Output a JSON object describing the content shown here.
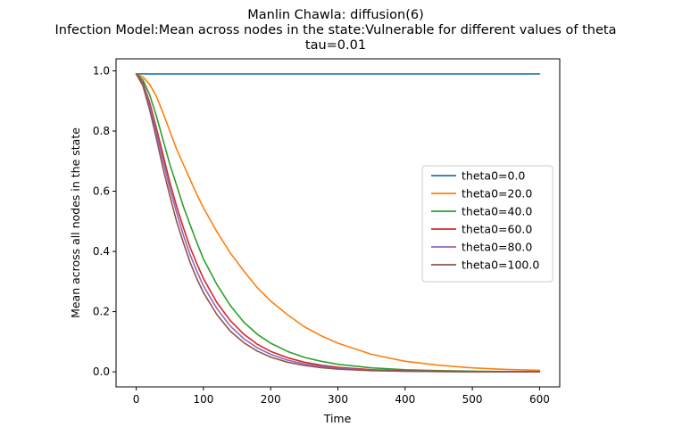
{
  "chart_data": {
    "type": "line",
    "title": "Manlin Chawla: diffusion(6)",
    "subtitle": "Infection Model:Mean across nodes in the state:Vulnerable for different values of theta",
    "subtitle2": "tau=0.01",
    "xlabel": "Time",
    "ylabel": "Mean across all nodes in the state",
    "xlim": [
      -30,
      630
    ],
    "ylim": [
      -0.05,
      1.04
    ],
    "xticks": [
      0,
      100,
      200,
      300,
      400,
      500,
      600
    ],
    "yticks": [
      0.0,
      0.2,
      0.4,
      0.6,
      0.8,
      1.0
    ],
    "xtick_labels": [
      "0",
      "100",
      "200",
      "300",
      "400",
      "500",
      "600"
    ],
    "ytick_labels": [
      "0.0",
      "0.2",
      "0.4",
      "0.6",
      "0.8",
      "1.0"
    ],
    "grid": false,
    "legend_position": "center-right",
    "x": [
      0,
      10,
      20,
      30,
      40,
      50,
      60,
      70,
      80,
      90,
      100,
      120,
      140,
      160,
      180,
      200,
      225,
      250,
      275,
      300,
      350,
      400,
      450,
      500,
      550,
      600
    ],
    "series": [
      {
        "name": "theta0=0.0",
        "color": "#1f77b4",
        "values": [
          0.99,
          0.99,
          0.99,
          0.99,
          0.99,
          0.99,
          0.99,
          0.99,
          0.99,
          0.99,
          0.99,
          0.99,
          0.99,
          0.99,
          0.99,
          0.99,
          0.99,
          0.99,
          0.99,
          0.99,
          0.99,
          0.99,
          0.99,
          0.99,
          0.99,
          0.99
        ]
      },
      {
        "name": "theta0=20.0",
        "color": "#ff7f0e",
        "values": [
          0.99,
          0.98,
          0.955,
          0.915,
          0.86,
          0.8,
          0.74,
          0.69,
          0.64,
          0.59,
          0.545,
          0.465,
          0.395,
          0.335,
          0.28,
          0.235,
          0.19,
          0.15,
          0.12,
          0.095,
          0.058,
          0.035,
          0.022,
          0.013,
          0.008,
          0.005
        ]
      },
      {
        "name": "theta0=40.0",
        "color": "#2ca02c",
        "values": [
          0.99,
          0.97,
          0.92,
          0.85,
          0.77,
          0.69,
          0.62,
          0.55,
          0.49,
          0.43,
          0.375,
          0.29,
          0.22,
          0.165,
          0.125,
          0.095,
          0.068,
          0.048,
          0.035,
          0.025,
          0.013,
          0.007,
          0.004,
          0.002,
          0.001,
          0.001
        ]
      },
      {
        "name": "theta0=60.0",
        "color": "#d62728",
        "values": [
          0.99,
          0.96,
          0.895,
          0.81,
          0.72,
          0.63,
          0.55,
          0.48,
          0.415,
          0.36,
          0.31,
          0.23,
          0.17,
          0.125,
          0.092,
          0.068,
          0.047,
          0.032,
          0.022,
          0.015,
          0.007,
          0.003,
          0.002,
          0.001,
          0.0,
          0.0
        ]
      },
      {
        "name": "theta0=80.0",
        "color": "#9467bd",
        "values": [
          0.99,
          0.955,
          0.885,
          0.795,
          0.7,
          0.61,
          0.53,
          0.455,
          0.39,
          0.335,
          0.285,
          0.21,
          0.152,
          0.11,
          0.08,
          0.058,
          0.039,
          0.026,
          0.018,
          0.012,
          0.005,
          0.002,
          0.001,
          0.0,
          0.0,
          0.0
        ]
      },
      {
        "name": "theta0=100.0",
        "color": "#8c564b",
        "values": [
          0.99,
          0.95,
          0.87,
          0.775,
          0.675,
          0.585,
          0.5,
          0.43,
          0.365,
          0.31,
          0.263,
          0.19,
          0.135,
          0.097,
          0.069,
          0.049,
          0.032,
          0.021,
          0.014,
          0.009,
          0.004,
          0.002,
          0.001,
          0.0,
          0.0,
          0.0
        ]
      }
    ]
  }
}
